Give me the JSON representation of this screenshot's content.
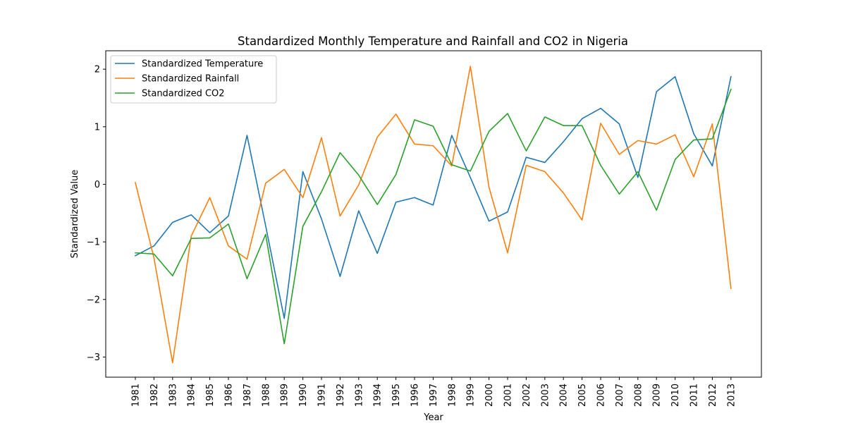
{
  "chart_data": {
    "type": "line",
    "title": "Standardized Monthly Temperature and Rainfall and CO2 in Nigeria",
    "xlabel": "Year",
    "ylabel": "Standardized Value",
    "ylim": [
      -3.35,
      2.32
    ],
    "yticks": [
      -3,
      -2,
      -1,
      0,
      1,
      2
    ],
    "ytick_labels": [
      "−3",
      "−2",
      "−1",
      "0",
      "1",
      "2"
    ],
    "grid": false,
    "legend_position": "upper-left",
    "x": [
      "1981",
      "1982",
      "1983",
      "1984",
      "1985",
      "1986",
      "1987",
      "1988",
      "1989",
      "1990",
      "1991",
      "1992",
      "1993",
      "1994",
      "1995",
      "1996",
      "1997",
      "1998",
      "1999",
      "2000",
      "2001",
      "2002",
      "2003",
      "2004",
      "2005",
      "2006",
      "2007",
      "2008",
      "2009",
      "2010",
      "2011",
      "2012",
      "2013"
    ],
    "series": [
      {
        "name": "Standardized Temperature",
        "color": "#1f77b4",
        "values": [
          -1.24,
          -1.07,
          -0.66,
          -0.53,
          -0.84,
          -0.55,
          0.85,
          -0.72,
          -2.33,
          0.22,
          -0.6,
          -1.6,
          -0.46,
          -1.2,
          -0.31,
          -0.23,
          -0.36,
          0.85,
          0.12,
          -0.64,
          -0.48,
          0.47,
          0.38,
          0.74,
          1.14,
          1.32,
          1.05,
          0.12,
          1.61,
          1.87,
          0.88,
          0.32,
          1.87
        ]
      },
      {
        "name": "Standardized Rainfall",
        "color": "#ff7f0e",
        "values": [
          0.03,
          -1.28,
          -3.1,
          -0.9,
          -0.23,
          -1.07,
          -1.3,
          0.02,
          0.26,
          -0.23,
          0.81,
          -0.55,
          -0.01,
          0.82,
          1.22,
          0.7,
          0.67,
          0.32,
          2.05,
          -0.05,
          -1.19,
          0.33,
          0.22,
          -0.15,
          -0.62,
          1.06,
          0.52,
          0.76,
          0.7,
          0.86,
          0.13,
          1.05,
          -1.81
        ]
      },
      {
        "name": "Standardized CO2",
        "color": "#2ca02c",
        "values": [
          -1.19,
          -1.21,
          -1.59,
          -0.94,
          -0.93,
          -0.69,
          -1.64,
          -0.87,
          -2.77,
          -0.73,
          -0.13,
          0.55,
          0.16,
          -0.35,
          0.17,
          1.12,
          1.01,
          0.34,
          0.23,
          0.92,
          1.23,
          0.58,
          1.17,
          1.02,
          1.02,
          0.33,
          -0.17,
          0.22,
          -0.45,
          0.43,
          0.77,
          0.79,
          1.65
        ]
      }
    ]
  }
}
